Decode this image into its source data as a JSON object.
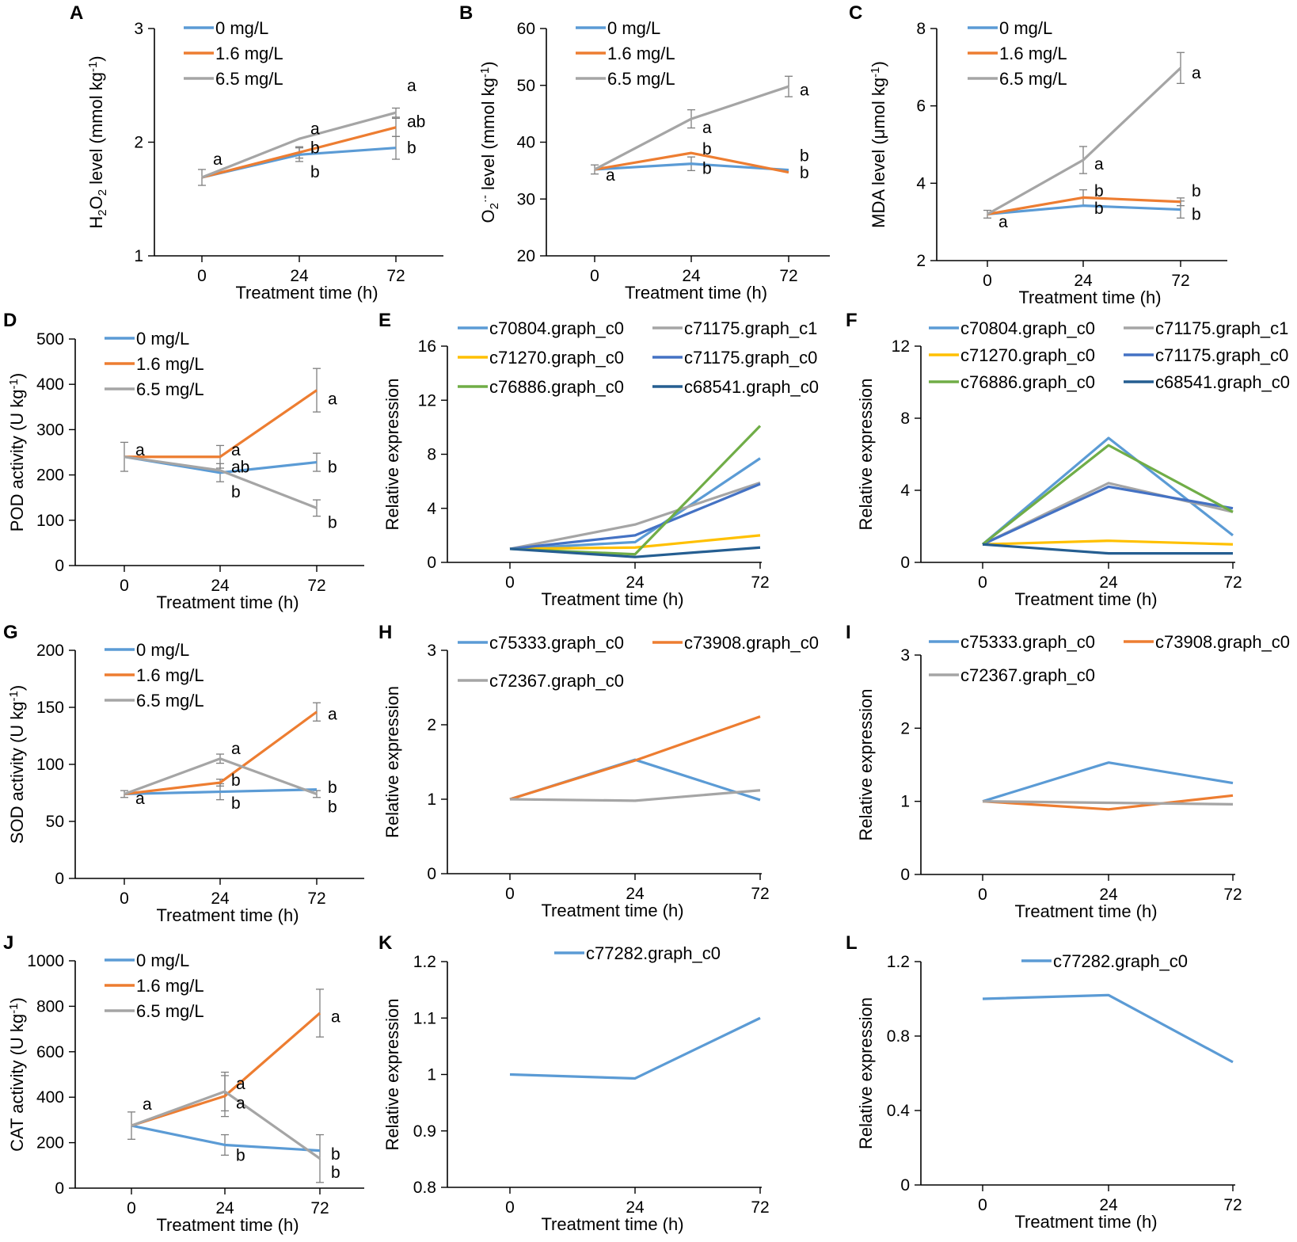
{
  "colors": {
    "blue": "#5B9BD5",
    "orange": "#ED7D31",
    "gray": "#A5A5A5",
    "yellow": "#FFC000",
    "royal": "#4472C4",
    "green": "#70AD47",
    "navy": "#255E91",
    "axis": "#000000",
    "errorbar": "#7F7F7F"
  },
  "chart_data": [
    {
      "letter": "A",
      "type": "line",
      "x": [
        "0",
        "24",
        "72"
      ],
      "xlabel": "Treatment time (h)",
      "ylabel": "H₂O₂ level (mmol kg⁻¹)",
      "ylim": [
        1,
        3
      ],
      "yticks": [
        "1",
        "2",
        "3"
      ],
      "legend_position": "top-left",
      "legend_columns": 1,
      "series": [
        {
          "name": "0 mg/L",
          "color": "blue",
          "values": [
            1.69,
            1.89,
            1.95
          ],
          "errors": [
            0,
            0.06,
            0.1
          ]
        },
        {
          "name": "1.6 mg/L",
          "color": "orange",
          "values": [
            1.69,
            1.91,
            2.13
          ],
          "errors": [
            0,
            0.05,
            0.08
          ]
        },
        {
          "name": "6.5 mg/L",
          "color": "gray",
          "values": [
            1.69,
            2.03,
            2.26
          ],
          "errors": [
            0.07,
            0,
            0.04
          ]
        }
      ],
      "annotations": [
        {
          "text": "a",
          "x": 0,
          "y": 1.85
        },
        {
          "text": "a",
          "x": 1,
          "y": 2.12
        },
        {
          "text": "b",
          "x": 1,
          "y": 1.95
        },
        {
          "text": "b",
          "x": 1,
          "y": 1.74
        },
        {
          "text": "a",
          "x": 2,
          "y": 2.5
        },
        {
          "text": "ab",
          "x": 2,
          "y": 2.18
        },
        {
          "text": "b",
          "x": 2,
          "y": 1.95
        }
      ]
    },
    {
      "letter": "B",
      "type": "line",
      "x": [
        "0",
        "24",
        "72"
      ],
      "xlabel": "Treatment time (h)",
      "ylabel": "O₂·⁻ level (mmol kg⁻¹)",
      "ylim": [
        20,
        60
      ],
      "yticks": [
        "20",
        "30",
        "40",
        "50",
        "60"
      ],
      "legend_position": "top-left",
      "legend_columns": 1,
      "series": [
        {
          "name": "0 mg/L",
          "color": "blue",
          "values": [
            35.2,
            36.2,
            35.1
          ],
          "errors": [
            0,
            1.2,
            0
          ]
        },
        {
          "name": "1.6 mg/L",
          "color": "orange",
          "values": [
            35.2,
            38.1,
            34.7
          ],
          "errors": [
            0,
            0,
            0
          ]
        },
        {
          "name": "6.5 mg/L",
          "color": "gray",
          "values": [
            35.2,
            44.1,
            49.8
          ],
          "errors": [
            0.8,
            1.6,
            1.8
          ]
        }
      ],
      "annotations": [
        {
          "text": "a",
          "x": 0,
          "y": 34.2
        },
        {
          "text": "a",
          "x": 1,
          "y": 42.6
        },
        {
          "text": "b",
          "x": 1,
          "y": 38.8
        },
        {
          "text": "b",
          "x": 1,
          "y": 35.4
        },
        {
          "text": "a",
          "x": 2,
          "y": 49.2
        },
        {
          "text": "b",
          "x": 2,
          "y": 37.6
        },
        {
          "text": "b",
          "x": 2,
          "y": 34.6
        }
      ]
    },
    {
      "letter": "C",
      "type": "line",
      "x": [
        "0",
        "24",
        "72"
      ],
      "xlabel": "Treatment time (h)",
      "ylabel": "MDA level (μmol kg⁻¹)",
      "ylim": [
        2,
        8
      ],
      "yticks": [
        "2",
        "4",
        "6",
        "8"
      ],
      "legend_position": "top-left",
      "legend_columns": 1,
      "series": [
        {
          "name": "0 mg/L",
          "color": "blue",
          "values": [
            3.2,
            3.42,
            3.32
          ],
          "errors": [
            0,
            0,
            0.22
          ]
        },
        {
          "name": "1.6 mg/L",
          "color": "orange",
          "values": [
            3.2,
            3.63,
            3.52
          ],
          "errors": [
            0,
            0.2,
            0.1
          ]
        },
        {
          "name": "6.5 mg/L",
          "color": "gray",
          "values": [
            3.2,
            4.6,
            6.98
          ],
          "errors": [
            0.1,
            0.35,
            0.4
          ]
        }
      ],
      "annotations": [
        {
          "text": "a",
          "x": 0,
          "y": 3.0
        },
        {
          "text": "a",
          "x": 1,
          "y": 4.5
        },
        {
          "text": "b",
          "x": 1,
          "y": 3.8
        },
        {
          "text": "b",
          "x": 1,
          "y": 3.35
        },
        {
          "text": "a",
          "x": 2,
          "y": 6.85
        },
        {
          "text": "b",
          "x": 2,
          "y": 3.8
        },
        {
          "text": "b",
          "x": 2,
          "y": 3.2
        }
      ]
    },
    {
      "letter": "D",
      "type": "line",
      "x": [
        "0",
        "24",
        "72"
      ],
      "xlabel": "Treatment time (h)",
      "ylabel": "POD activity (U kg⁻¹)",
      "ylim": [
        0,
        500
      ],
      "yticks": [
        "0",
        "100",
        "200",
        "300",
        "400",
        "500"
      ],
      "legend_position": "top-left",
      "legend_columns": 1,
      "series": [
        {
          "name": "0 mg/L",
          "color": "blue",
          "values": [
            240,
            205,
            228
          ],
          "errors": [
            0,
            20,
            20
          ]
        },
        {
          "name": "1.6 mg/L",
          "color": "orange",
          "values": [
            240,
            240,
            387
          ],
          "errors": [
            0,
            25,
            48
          ]
        },
        {
          "name": "6.5 mg/L",
          "color": "gray",
          "values": [
            240,
            210,
            127
          ],
          "errors": [
            32,
            0,
            18
          ]
        }
      ],
      "annotations": [
        {
          "text": "a",
          "x": 0,
          "y": 255
        },
        {
          "text": "a",
          "x": 1,
          "y": 255
        },
        {
          "text": "ab",
          "x": 1,
          "y": 218
        },
        {
          "text": "b",
          "x": 1,
          "y": 163
        },
        {
          "text": "a",
          "x": 2,
          "y": 368
        },
        {
          "text": "b",
          "x": 2,
          "y": 218
        },
        {
          "text": "b",
          "x": 2,
          "y": 95
        }
      ]
    },
    {
      "letter": "E",
      "type": "line",
      "x": [
        "0",
        "24",
        "72"
      ],
      "xlabel": "Treatment time (h)",
      "ylabel": "Relative expression",
      "ylim": [
        0,
        16
      ],
      "yticks": [
        "0",
        "4",
        "8",
        "12",
        "16"
      ],
      "legend_position": "top",
      "legend_columns": 2,
      "series": [
        {
          "name": "c70804.graph_c0",
          "color": "blue",
          "values": [
            1.0,
            1.5,
            7.7
          ]
        },
        {
          "name": "c71175.graph_c1",
          "color": "gray",
          "values": [
            1.0,
            2.8,
            5.9
          ]
        },
        {
          "name": "c71270.graph_c0",
          "color": "yellow",
          "values": [
            1.0,
            1.1,
            2.0
          ]
        },
        {
          "name": "c71175.graph_c0",
          "color": "royal",
          "values": [
            1.0,
            2.0,
            5.8
          ]
        },
        {
          "name": "c76886.graph_c0",
          "color": "green",
          "values": [
            1.0,
            0.6,
            10.1
          ]
        },
        {
          "name": "c68541.graph_c0",
          "color": "navy",
          "values": [
            1.0,
            0.4,
            1.1
          ]
        }
      ]
    },
    {
      "letter": "F",
      "type": "line",
      "x": [
        "0",
        "24",
        "72"
      ],
      "xlabel": "Treatment time (h)",
      "ylabel": "Relative expression",
      "ylim": [
        0,
        12
      ],
      "yticks": [
        "0",
        "4",
        "8",
        "12"
      ],
      "legend_position": "top",
      "legend_columns": 2,
      "series": [
        {
          "name": "c70804.graph_c0",
          "color": "blue",
          "values": [
            1.0,
            6.9,
            1.5
          ]
        },
        {
          "name": "c71175.graph_c1",
          "color": "gray",
          "values": [
            1.0,
            4.4,
            2.8
          ]
        },
        {
          "name": "c71270.graph_c0",
          "color": "yellow",
          "values": [
            1.0,
            1.2,
            1.0
          ]
        },
        {
          "name": "c71175.graph_c0",
          "color": "royal",
          "values": [
            1.0,
            4.2,
            3.0
          ]
        },
        {
          "name": "c76886.graph_c0",
          "color": "green",
          "values": [
            1.0,
            6.5,
            2.8
          ]
        },
        {
          "name": "c68541.graph_c0",
          "color": "navy",
          "values": [
            1.0,
            0.5,
            0.5
          ]
        }
      ]
    },
    {
      "letter": "G",
      "type": "line",
      "x": [
        "0",
        "24",
        "72"
      ],
      "xlabel": "Treatment time (h)",
      "ylabel": "SOD activity (U kg⁻¹)",
      "ylim": [
        0,
        200
      ],
      "yticks": [
        "0",
        "50",
        "100",
        "150",
        "200"
      ],
      "legend_position": "top-left",
      "legend_columns": 1,
      "series": [
        {
          "name": "0 mg/L",
          "color": "blue",
          "values": [
            74,
            76,
            78
          ],
          "errors": [
            0,
            7,
            0
          ]
        },
        {
          "name": "1.6 mg/L",
          "color": "orange",
          "values": [
            74,
            84,
            146
          ],
          "errors": [
            0,
            3,
            8
          ]
        },
        {
          "name": "6.5 mg/L",
          "color": "gray",
          "values": [
            74,
            105,
            74
          ],
          "errors": [
            3,
            4,
            3
          ]
        }
      ],
      "annotations": [
        {
          "text": "a",
          "x": 0,
          "y": 70
        },
        {
          "text": "a",
          "x": 1,
          "y": 114
        },
        {
          "text": "b",
          "x": 1,
          "y": 86
        },
        {
          "text": "b",
          "x": 1,
          "y": 66
        },
        {
          "text": "a",
          "x": 2,
          "y": 144
        },
        {
          "text": "b",
          "x": 2,
          "y": 80
        },
        {
          "text": "b",
          "x": 2,
          "y": 63
        }
      ]
    },
    {
      "letter": "H",
      "type": "line",
      "x": [
        "0",
        "24",
        "72"
      ],
      "xlabel": "Treatment time (h)",
      "ylabel": "Relative expression",
      "ylim": [
        0,
        3
      ],
      "yticks": [
        "0",
        "1",
        "2",
        "3"
      ],
      "legend_position": "top",
      "legend_columns": 2,
      "series": [
        {
          "name": "c75333.graph_c0",
          "color": "blue",
          "values": [
            1.0,
            1.53,
            0.99
          ]
        },
        {
          "name": "c73908.graph_c0",
          "color": "orange",
          "values": [
            1.0,
            1.52,
            2.11
          ]
        },
        {
          "name": "c72367.graph_c0",
          "color": "gray",
          "values": [
            1.0,
            0.98,
            1.12
          ]
        }
      ]
    },
    {
      "letter": "I",
      "type": "line",
      "x": [
        "0",
        "24",
        "72"
      ],
      "xlabel": "Treatment time (h)",
      "ylabel": "Relative expression",
      "ylim": [
        0,
        3
      ],
      "yticks": [
        "0",
        "1",
        "2",
        "3"
      ],
      "legend_position": "top",
      "legend_columns": 2,
      "series": [
        {
          "name": "c75333.graph_c0",
          "color": "blue",
          "values": [
            1.0,
            1.53,
            1.25
          ]
        },
        {
          "name": "c73908.graph_c0",
          "color": "orange",
          "values": [
            1.0,
            0.89,
            1.08
          ]
        },
        {
          "name": "c72367.graph_c0",
          "color": "gray",
          "values": [
            1.0,
            0.98,
            0.96
          ]
        }
      ]
    },
    {
      "letter": "J",
      "type": "line",
      "x": [
        "0",
        "24",
        "72"
      ],
      "xlabel": "Treatment time (h)",
      "ylabel": "CAT activity (U kg⁻¹)",
      "ylim": [
        0,
        1000
      ],
      "yticks": [
        "0",
        "200",
        "400",
        "600",
        "800",
        "1000"
      ],
      "legend_position": "top-left",
      "legend_columns": 1,
      "series": [
        {
          "name": "0 mg/L",
          "color": "blue",
          "values": [
            275,
            190,
            165
          ],
          "errors": [
            0,
            45,
            0
          ]
        },
        {
          "name": "1.6 mg/L",
          "color": "orange",
          "values": [
            275,
            405,
            770
          ],
          "errors": [
            0,
            90,
            105
          ]
        },
        {
          "name": "6.5 mg/L",
          "color": "gray",
          "values": [
            275,
            425,
            130
          ],
          "errors": [
            60,
            85,
            105
          ]
        }
      ],
      "annotations": [
        {
          "text": "a",
          "x": 0,
          "y": 370
        },
        {
          "text": "a",
          "x": 1,
          "y": 460
        },
        {
          "text": "a",
          "x": 1,
          "y": 375
        },
        {
          "text": "b",
          "x": 1,
          "y": 145
        },
        {
          "text": "a",
          "x": 2,
          "y": 755
        },
        {
          "text": "b",
          "x": 2,
          "y": 150
        },
        {
          "text": "b",
          "x": 2,
          "y": 70
        }
      ]
    },
    {
      "letter": "K",
      "type": "line",
      "x": [
        "0",
        "24",
        "72"
      ],
      "xlabel": "Treatment time (h)",
      "ylabel": "Relative expression",
      "ylim": [
        0.8,
        1.2
      ],
      "yticks": [
        "0.8",
        "0.9",
        "1",
        "1.1",
        "1.2"
      ],
      "legend_position": "top",
      "legend_columns": 1,
      "series": [
        {
          "name": "c77282.graph_c0",
          "color": "blue",
          "values": [
            1.0,
            0.993,
            1.1
          ]
        }
      ]
    },
    {
      "letter": "L",
      "type": "line",
      "x": [
        "0",
        "24",
        "72"
      ],
      "xlabel": "Treatment time (h)",
      "ylabel": "Relative expression",
      "ylim": [
        0,
        1.2
      ],
      "yticks": [
        "0",
        "0.4",
        "0.8",
        "1.2"
      ],
      "legend_position": "top",
      "legend_columns": 1,
      "series": [
        {
          "name": "c77282.graph_c0",
          "color": "blue",
          "values": [
            1.0,
            1.02,
            0.66
          ]
        }
      ]
    }
  ]
}
